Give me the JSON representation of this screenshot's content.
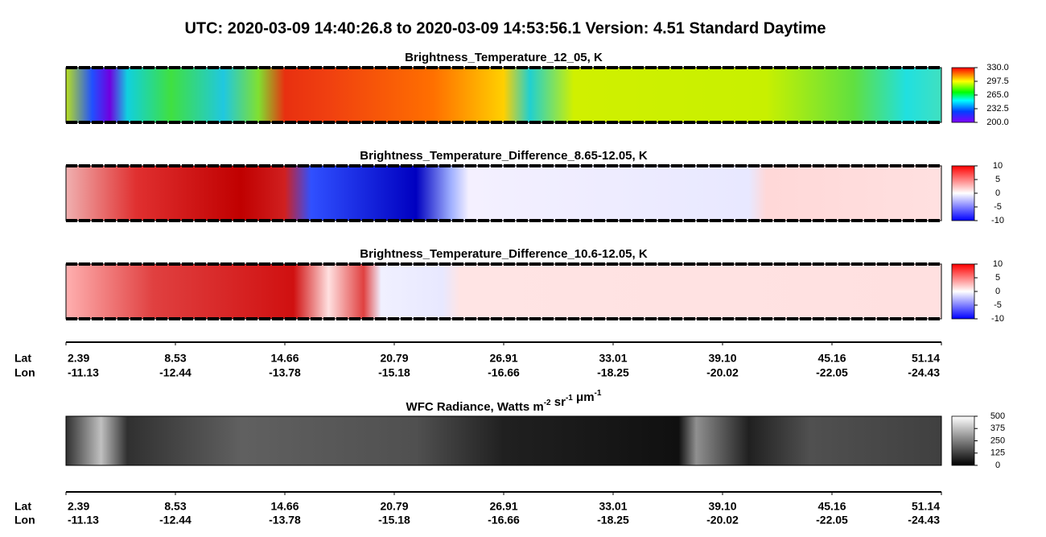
{
  "header": {
    "title": "UTC:  2020-03-09   14:40:26.8  to  2020-03-09   14:53:56.1    Version: 4.51  Standard Daytime"
  },
  "chart_data": [
    {
      "type": "heatmap",
      "title": "Brightness_Temperature_12_05, K",
      "zlim": [
        200,
        330
      ],
      "zticks": [
        {
          "value": 330,
          "label": "330.0"
        },
        {
          "value": 297.5,
          "label": "297.5"
        },
        {
          "value": 265,
          "label": "265.0"
        },
        {
          "value": 232.5,
          "label": "232.5"
        },
        {
          "value": 200,
          "label": "200.0"
        }
      ]
    },
    {
      "type": "heatmap",
      "title": "Brightness_Temperature_Difference_8.65-12.05, K",
      "zlim": [
        -10,
        10
      ],
      "zticks": [
        10,
        5,
        0,
        -5,
        -10
      ]
    },
    {
      "type": "heatmap",
      "title": "Brightness_Temperature_Difference_10.6-12.05, K",
      "zlim": [
        -10,
        10
      ],
      "zticks": [
        10,
        5,
        0,
        -5,
        -10
      ]
    },
    {
      "type": "heatmap",
      "title_parts": [
        [
          "WFC Radiance, Watts m",
          "-2"
        ],
        [
          " sr",
          "-1"
        ],
        [
          " μm",
          "-1"
        ]
      ],
      "zlim": [
        0,
        500
      ],
      "zticks": [
        500,
        375,
        250,
        125,
        0
      ]
    }
  ],
  "axis": {
    "lat_label": "Lat",
    "lon_label": "Lon",
    "lat": [
      "2.39",
      "8.53",
      "14.66",
      "20.79",
      "26.91",
      "33.01",
      "39.10",
      "45.16",
      "51.14"
    ],
    "lon": [
      "-11.13",
      "-12.44",
      "-13.78",
      "-15.18",
      "-16.66",
      "-18.25",
      "-20.02",
      "-22.05",
      "-24.43"
    ]
  }
}
